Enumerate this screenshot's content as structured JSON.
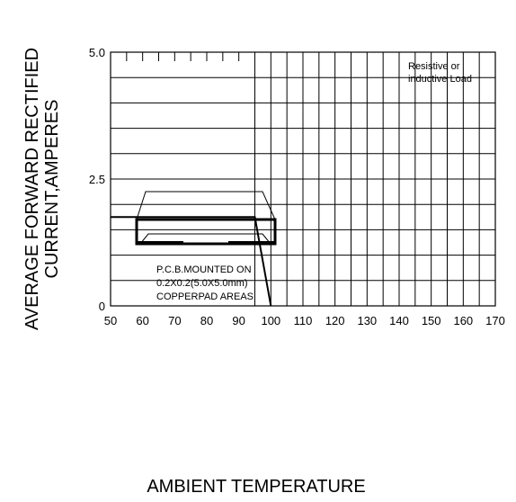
{
  "chart_data": {
    "type": "line",
    "title": "",
    "xlabel": "AMBIENT TEMPERATURE",
    "ylabel_line1": "AVERAGE FORWARD RECTIFIED",
    "ylabel_line2": "CURRENT,AMPERES",
    "xlim": [
      50,
      170
    ],
    "ylim": [
      0,
      5.0
    ],
    "x_ticks": [
      "50",
      "60",
      "70",
      "80",
      "90",
      "100",
      "110",
      "120",
      "130",
      "140",
      "150",
      "160",
      "170"
    ],
    "y_ticks": [
      "0",
      "2.5",
      "5.0"
    ],
    "grid": true,
    "series": [
      {
        "x": [
          50,
          95,
          100
        ],
        "y": [
          1.75,
          1.75,
          0
        ]
      }
    ],
    "annotations": {
      "load_line1": "Resistive or",
      "load_line2": "inductive Load",
      "pcb_line1": "P.C.B.MOUNTED ON",
      "pcb_line2": "0.2X0.2(5.0X5.0mm)",
      "pcb_line3": "COPPERPAD AREAS"
    }
  }
}
